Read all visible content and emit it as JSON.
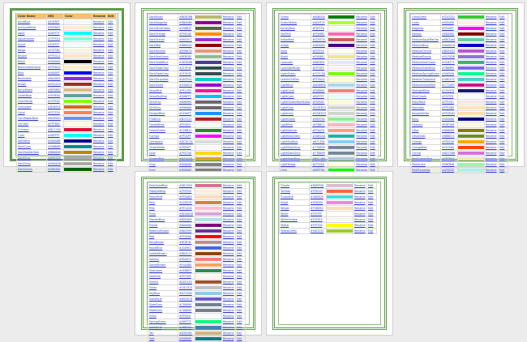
{
  "header": {
    "name": "Color Name",
    "hex": "HEX",
    "color": "Color",
    "rename": "Rename",
    "edit": "Edit"
  },
  "pages": [
    {
      "rows": [
        {
          "name": "AliceBlue",
          "hex": "#F0F8FF",
          "color": "#F0F8FF"
        },
        {
          "name": "AntiqueWhite",
          "hex": "#FAEBD7",
          "color": "#FAEBD7"
        },
        {
          "name": "Aqua",
          "hex": "#00FFFF",
          "color": "#00FFFF"
        },
        {
          "name": "Aquamarine",
          "hex": "#7FFFD4",
          "color": "#7FFFD4"
        },
        {
          "name": "Azure",
          "hex": "#F0FFFF",
          "color": "#F0FFFF"
        },
        {
          "name": "Beige",
          "hex": "#F5F5DC",
          "color": "#F5F5DC"
        },
        {
          "name": "Bisque",
          "hex": "#FFE4C4",
          "color": "#FFE4C4"
        },
        {
          "name": "Black",
          "hex": "#000000",
          "color": "#000000"
        },
        {
          "name": "BlanchedAlmond",
          "hex": "#FFEBCD",
          "color": "#FFEBCD"
        },
        {
          "name": "Blue",
          "hex": "#0000FF",
          "color": "#0000FF"
        },
        {
          "name": "BlueViolet",
          "hex": "#8A2BE2",
          "color": "#8A2BE2"
        },
        {
          "name": "Brown",
          "hex": "#A52A2A",
          "color": "#A52A2A"
        },
        {
          "name": "BurlyWood",
          "hex": "#DEB887",
          "color": "#DEB887"
        },
        {
          "name": "CadetBlue",
          "hex": "#5F9EA0",
          "color": "#5F9EA0"
        },
        {
          "name": "Chartreuse",
          "hex": "#7FFF00",
          "color": "#7FFF00"
        },
        {
          "name": "Chocolate",
          "hex": "#D2691E",
          "color": "#D2691E"
        },
        {
          "name": "Coral",
          "hex": "#FF7F50",
          "color": "#FF7F50"
        },
        {
          "name": "CornflowerBlue",
          "hex": "#6495ED",
          "color": "#6495ED"
        },
        {
          "name": "Cornsilk",
          "hex": "#FFF8DC",
          "color": "#FFF8DC"
        },
        {
          "name": "Crimson",
          "hex": "#DC143C",
          "color": "#DC143C"
        },
        {
          "name": "Cyan",
          "hex": "#00FFFF",
          "color": "#00FFFF"
        },
        {
          "name": "DarkBlue",
          "hex": "#00008B",
          "color": "#00008B"
        },
        {
          "name": "DarkCyan",
          "hex": "#008B8B",
          "color": "#008B8B"
        },
        {
          "name": "DarkGoldenRod",
          "hex": "#B8860B",
          "color": "#B8860B"
        },
        {
          "name": "DarkGray",
          "hex": "#A9A9A9",
          "color": "#A9A9A9"
        },
        {
          "name": "DarkGrey",
          "hex": "#A9A9A9",
          "color": "#A9A9A9"
        },
        {
          "name": "DarkGreen",
          "hex": "#006400",
          "color": "#006400"
        }
      ]
    },
    {
      "rows": [
        {
          "name": "DarkKhaki",
          "hex": "#BDB76B",
          "color": "#BDB76B"
        },
        {
          "name": "DarkMagenta",
          "hex": "#8B008B",
          "color": "#8B008B"
        },
        {
          "name": "DarkOliveGreen",
          "hex": "#556B2F",
          "color": "#556B2F"
        },
        {
          "name": "DarkOrange",
          "hex": "#FF8C00",
          "color": "#FF8C00"
        },
        {
          "name": "DarkOrchid",
          "hex": "#9932CC",
          "color": "#9932CC"
        },
        {
          "name": "DarkRed",
          "hex": "#8B0000",
          "color": "#8B0000"
        },
        {
          "name": "DarkSalmon",
          "hex": "#E9967A",
          "color": "#E9967A"
        },
        {
          "name": "DarkSeaGreen",
          "hex": "#8FBC8F",
          "color": "#8FBC8F"
        },
        {
          "name": "DarkSlateBlue",
          "hex": "#483D8B",
          "color": "#483D8B"
        },
        {
          "name": "DarkSlateGray",
          "hex": "#2F4F4F",
          "color": "#2F4F4F"
        },
        {
          "name": "DarkSlateGrey",
          "hex": "#2F4F4F",
          "color": "#2F4F4F"
        },
        {
          "name": "DarkTurquoise",
          "hex": "#00CED1",
          "color": "#00CED1"
        },
        {
          "name": "DarkViolet",
          "hex": "#9400D3",
          "color": "#9400D3"
        },
        {
          "name": "DeepPink",
          "hex": "#FF1493",
          "color": "#FF1493"
        },
        {
          "name": "DeepSkyBlue",
          "hex": "#00BFFF",
          "color": "#00BFFF"
        },
        {
          "name": "DimGray",
          "hex": "#696969",
          "color": "#696969"
        },
        {
          "name": "DimGrey",
          "hex": "#696969",
          "color": "#696969"
        },
        {
          "name": "DodgerBlue",
          "hex": "#1E90FF",
          "color": "#1E90FF"
        },
        {
          "name": "FireBrick",
          "hex": "#B22222",
          "color": "#B22222"
        },
        {
          "name": "FloralWhite",
          "hex": "#FFFAF0",
          "color": "#FFFAF0"
        },
        {
          "name": "ForestGreen",
          "hex": "#228B22",
          "color": "#228B22"
        },
        {
          "name": "Fuchsia",
          "hex": "#FF00FF",
          "color": "#FF00FF"
        },
        {
          "name": "Gainsboro",
          "hex": "#DCDCDC",
          "color": "#DCDCDC"
        },
        {
          "name": "GhostWhite",
          "hex": "#F8F8FF",
          "color": "#F8F8FF"
        },
        {
          "name": "Gold",
          "hex": "#FFD700",
          "color": "#FFD700"
        },
        {
          "name": "GoldenRod",
          "hex": "#DAA520",
          "color": "#DAA520"
        },
        {
          "name": "Gray",
          "hex": "#808080",
          "color": "#808080"
        },
        {
          "name": "Grey",
          "hex": "#808080",
          "color": "#808080"
        }
      ]
    },
    {
      "rows": [
        {
          "name": "Green",
          "hex": "#008000",
          "color": "#008000"
        },
        {
          "name": "GreenYellow",
          "hex": "#ADFF2F",
          "color": "#ADFF2F"
        },
        {
          "name": "HoneyDew",
          "hex": "#F0FFF0",
          "color": "#F0FFF0"
        },
        {
          "name": "HotPink",
          "hex": "#FF69B4",
          "color": "#FF69B4"
        },
        {
          "name": "IndianRed",
          "hex": "#CD5C5C",
          "color": "#CD5C5C"
        },
        {
          "name": "Indigo",
          "hex": "#4B0082",
          "color": "#4B0082"
        },
        {
          "name": "Ivory",
          "hex": "#FFFFF0",
          "color": "#FFFFF0"
        },
        {
          "name": "Khaki",
          "hex": "#F0E68C",
          "color": "#F0E68C"
        },
        {
          "name": "Lavender",
          "hex": "#E6E6FA",
          "color": "#E6E6FA"
        },
        {
          "name": "LavenderBlush",
          "hex": "#FFF0F5",
          "color": "#FFF0F5"
        },
        {
          "name": "LawnGreen",
          "hex": "#7CFC00",
          "color": "#7CFC00"
        },
        {
          "name": "LemonChiffon",
          "hex": "#FFFACD",
          "color": "#FFFACD"
        },
        {
          "name": "LightBlue",
          "hex": "#ADD8E6",
          "color": "#ADD8E6"
        },
        {
          "name": "LightCoral",
          "hex": "#F08080",
          "color": "#F08080"
        },
        {
          "name": "LightCyan",
          "hex": "#E0FFFF",
          "color": "#E0FFFF"
        },
        {
          "name": "LightGoldenRodYellow",
          "hex": "#FAFAD2",
          "color": "#FAFAD2"
        },
        {
          "name": "LightGray",
          "hex": "#D3D3D3",
          "color": "#D3D3D3"
        },
        {
          "name": "LightGrey",
          "hex": "#D3D3D3",
          "color": "#D3D3D3"
        },
        {
          "name": "LightGreen",
          "hex": "#90EE90",
          "color": "#90EE90"
        },
        {
          "name": "LightPink",
          "hex": "#FFB6C1",
          "color": "#FFB6C1"
        },
        {
          "name": "LightSalmon",
          "hex": "#FFA07A",
          "color": "#FFA07A"
        },
        {
          "name": "LightSeaGreen",
          "hex": "#20B2AA",
          "color": "#20B2AA"
        },
        {
          "name": "LightSkyBlue",
          "hex": "#87CEFA",
          "color": "#87CEFA"
        },
        {
          "name": "LightSlateGray",
          "hex": "#778899",
          "color": "#778899"
        },
        {
          "name": "LightSlateGrey",
          "hex": "#778899",
          "color": "#778899"
        },
        {
          "name": "LightSteelBlue",
          "hex": "#B0C4DE",
          "color": "#B0C4DE"
        },
        {
          "name": "LightYellow",
          "hex": "#FFFFE0",
          "color": "#FFFFE0"
        },
        {
          "name": "Lime",
          "hex": "#00FF00",
          "color": "#00FF00"
        }
      ]
    },
    {
      "rows": [
        {
          "name": "LimeGreen",
          "hex": "#32CD32",
          "color": "#32CD32"
        },
        {
          "name": "Linen",
          "hex": "#FAF0E6",
          "color": "#FAF0E6"
        },
        {
          "name": "Magenta",
          "hex": "#FF00FF",
          "color": "#FF00FF"
        },
        {
          "name": "Maroon",
          "hex": "#800000",
          "color": "#800000"
        },
        {
          "name": "MediumAquaMarine",
          "hex": "#66CDAA",
          "color": "#66CDAA"
        },
        {
          "name": "MediumBlue",
          "hex": "#0000CD",
          "color": "#0000CD"
        },
        {
          "name": "MediumOrchid",
          "hex": "#BA55D3",
          "color": "#BA55D3"
        },
        {
          "name": "MediumPurple",
          "hex": "#9370DB",
          "color": "#9370DB"
        },
        {
          "name": "MediumSeaGreen",
          "hex": "#3CB371",
          "color": "#3CB371"
        },
        {
          "name": "MediumSlateBlue",
          "hex": "#7B68EE",
          "color": "#7B68EE"
        },
        {
          "name": "MediumSpringGreen",
          "hex": "#00FA9A",
          "color": "#00FA9A"
        },
        {
          "name": "MediumTurquoise",
          "hex": "#48D1CC",
          "color": "#48D1CC"
        },
        {
          "name": "MediumVioletRed",
          "hex": "#C71585",
          "color": "#C71585"
        },
        {
          "name": "MidnightBlue",
          "hex": "#191970",
          "color": "#191970"
        },
        {
          "name": "MintCream",
          "hex": "#F5FFFA",
          "color": "#F5FFFA"
        },
        {
          "name": "MistyRose",
          "hex": "#FFE4E1",
          "color": "#FFE4E1"
        },
        {
          "name": "Moccasin",
          "hex": "#FFE4B5",
          "color": "#FFE4B5"
        },
        {
          "name": "NavajoWhite",
          "hex": "#FFDEAD",
          "color": "#FFDEAD"
        },
        {
          "name": "Navy",
          "hex": "#000080",
          "color": "#000080"
        },
        {
          "name": "OldLace",
          "hex": "#FDF5E6",
          "color": "#FDF5E6"
        },
        {
          "name": "Olive",
          "hex": "#808000",
          "color": "#808000"
        },
        {
          "name": "OliveDrab",
          "hex": "#6B8E23",
          "color": "#6B8E23"
        },
        {
          "name": "Orange",
          "hex": "#FFA500",
          "color": "#FFA500"
        },
        {
          "name": "OrangeRed",
          "hex": "#FF4500",
          "color": "#FF4500"
        },
        {
          "name": "Orchid",
          "hex": "#DA70D6",
          "color": "#DA70D6"
        },
        {
          "name": "PaleGoldenRod",
          "hex": "#EEE8AA",
          "color": "#EEE8AA"
        },
        {
          "name": "PaleGreen",
          "hex": "#98FB98",
          "color": "#98FB98"
        },
        {
          "name": "PaleTurquoise",
          "hex": "#AFEEEE",
          "color": "#AFEEEE"
        }
      ]
    },
    {
      "rows": [
        {
          "name": "PaleVioletRed",
          "hex": "#DB7093",
          "color": "#DB7093"
        },
        {
          "name": "PapayaWhip",
          "hex": "#FFEFD5",
          "color": "#FFEFD5"
        },
        {
          "name": "PeachPuff",
          "hex": "#FFDAB9",
          "color": "#FFDAB9"
        },
        {
          "name": "Peru",
          "hex": "#CD853F",
          "color": "#CD853F"
        },
        {
          "name": "Pink",
          "hex": "#FFC0CB",
          "color": "#FFC0CB"
        },
        {
          "name": "Plum",
          "hex": "#DDA0DD",
          "color": "#DDA0DD"
        },
        {
          "name": "PowderBlue",
          "hex": "#B0E0E6",
          "color": "#B0E0E6"
        },
        {
          "name": "Purple",
          "hex": "#800080",
          "color": "#800080"
        },
        {
          "name": "RebeccaPurple",
          "hex": "#663399",
          "color": "#663399"
        },
        {
          "name": "Red",
          "hex": "#FF0000",
          "color": "#FF0000"
        },
        {
          "name": "RosyBrown",
          "hex": "#BC8F8F",
          "color": "#BC8F8F"
        },
        {
          "name": "RoyalBlue",
          "hex": "#4169E1",
          "color": "#4169E1"
        },
        {
          "name": "SaddleBrown",
          "hex": "#8B4513",
          "color": "#8B4513"
        },
        {
          "name": "Salmon",
          "hex": "#FA8072",
          "color": "#FA8072"
        },
        {
          "name": "SandyBrown",
          "hex": "#F4A460",
          "color": "#F4A460"
        },
        {
          "name": "SeaGreen",
          "hex": "#2E8B57",
          "color": "#2E8B57"
        },
        {
          "name": "SeaShell",
          "hex": "#FFF5EE",
          "color": "#FFF5EE"
        },
        {
          "name": "Sienna",
          "hex": "#A0522D",
          "color": "#A0522D"
        },
        {
          "name": "Silver",
          "hex": "#C0C0C0",
          "color": "#C0C0C0"
        },
        {
          "name": "SkyBlue",
          "hex": "#87CEEB",
          "color": "#87CEEB"
        },
        {
          "name": "SlateBlue",
          "hex": "#6A5ACD",
          "color": "#6A5ACD"
        },
        {
          "name": "SlateGray",
          "hex": "#708090",
          "color": "#708090"
        },
        {
          "name": "SlateGrey",
          "hex": "#708090",
          "color": "#708090"
        },
        {
          "name": "Snow",
          "hex": "#FFFAFA",
          "color": "#FFFAFA"
        },
        {
          "name": "SpringGreen",
          "hex": "#00FF7F",
          "color": "#00FF7F"
        },
        {
          "name": "SteelBlue",
          "hex": "#4682B4",
          "color": "#4682B4"
        },
        {
          "name": "Tan",
          "hex": "#D2B48C",
          "color": "#D2B48C"
        },
        {
          "name": "Teal",
          "hex": "#008080",
          "color": "#008080"
        }
      ]
    },
    {
      "rows": [
        {
          "name": "Thistle",
          "hex": "#D8BFD8",
          "color": "#D8BFD8"
        },
        {
          "name": "Tomato",
          "hex": "#FF6347",
          "color": "#FF6347"
        },
        {
          "name": "Turquoise",
          "hex": "#40E0D0",
          "color": "#40E0D0"
        },
        {
          "name": "Violet",
          "hex": "#EE82EE",
          "color": "#EE82EE"
        },
        {
          "name": "Wheat",
          "hex": "#F5DEB3",
          "color": "#F5DEB3"
        },
        {
          "name": "White",
          "hex": "#FFFFFF",
          "color": "#FFFFFF"
        },
        {
          "name": "WhiteSmoke",
          "hex": "#F5F5F5",
          "color": "#F5F5F5"
        },
        {
          "name": "Yellow",
          "hex": "#FFFF00",
          "color": "#FFFF00"
        },
        {
          "name": "YellowGreen",
          "hex": "#9ACD32",
          "color": "#9ACD32"
        }
      ]
    }
  ],
  "row_actions": {
    "rename": "Rename",
    "edit": "Edit"
  }
}
